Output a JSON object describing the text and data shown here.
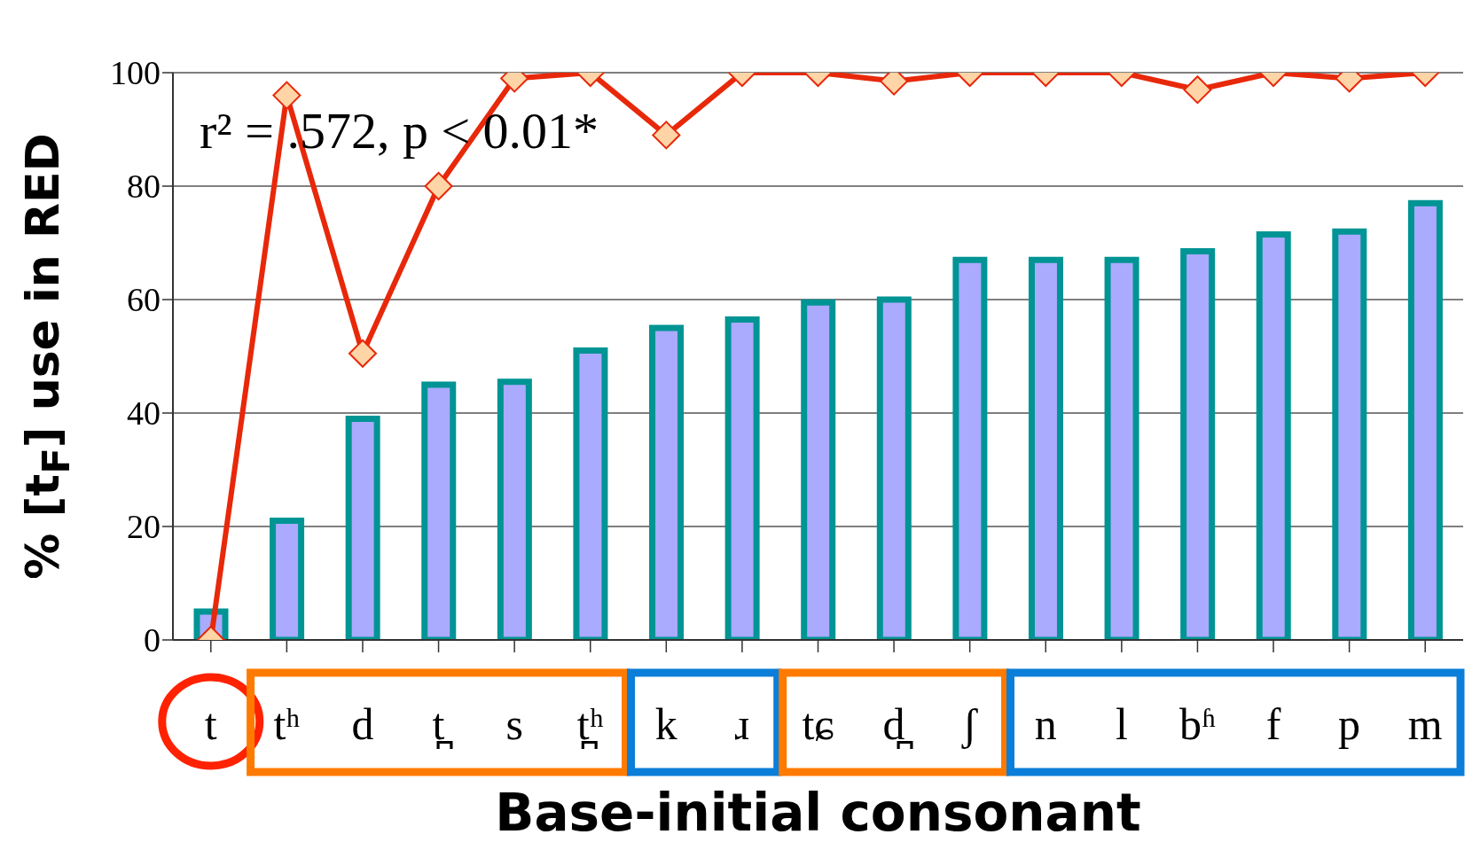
{
  "chart_data": {
    "type": "bar",
    "xlabel": "Base-initial consonant",
    "ylabel": "% [t$_{F}$] use in RED",
    "categories": [
      "t",
      "tʰ",
      "d",
      "t̪",
      "s",
      "t̪ʰ",
      "k",
      "ɹ",
      "tɕ",
      "d̪",
      "ʃ",
      "n",
      "l",
      "bʱ",
      "f",
      "p",
      "m"
    ],
    "series": [
      {
        "color": "#aaaaff",
        "values": [
          5,
          21,
          39,
          45,
          45.5,
          51,
          55,
          56.5,
          59.5,
          60,
          67,
          67,
          67,
          68.5,
          71.5,
          72,
          77
        ]
      },
      {
        "type": "line",
        "color": "#e8280a",
        "marker": "diamond",
        "line_style": "solid",
        "values": [
          0,
          96,
          50.5,
          80,
          99,
          100,
          89,
          100,
          100,
          98.5,
          100,
          100,
          100,
          97,
          100,
          99,
          100
        ]
      }
    ],
    "ylim": [
      0,
      100
    ],
    "yticks": [
      0,
      20,
      40,
      60,
      80,
      100
    ],
    "grid": "y",
    "annotations": [
      "r² = .572, p < 0.01*"
    ]
  }
}
